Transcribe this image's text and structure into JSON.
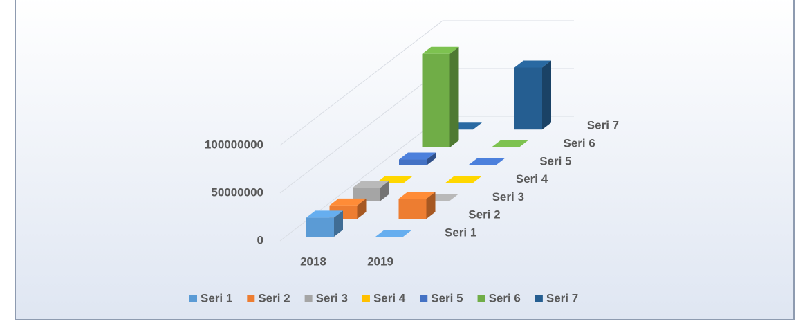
{
  "chart_data": {
    "type": "bar3d",
    "categories": [
      "2018",
      "2019"
    ],
    "series": [
      {
        "name": "Seri 1",
        "color": "#5b9bd5",
        "values": [
          20000000,
          0
        ]
      },
      {
        "name": "Seri 2",
        "color": "#ed7d31",
        "values": [
          14000000,
          21000000
        ]
      },
      {
        "name": "Seri 3",
        "color": "#a5a5a5",
        "values": [
          14000000,
          0
        ]
      },
      {
        "name": "Seri 4",
        "color": "#ffc000",
        "values": [
          0,
          0
        ]
      },
      {
        "name": "Seri 5",
        "color": "#4472c4",
        "values": [
          6000000,
          0
        ]
      },
      {
        "name": "Seri 6",
        "color": "#70ad47",
        "values": [
          98000000,
          0
        ]
      },
      {
        "name": "Seri 7",
        "color": "#255e91",
        "values": [
          0,
          65000000
        ]
      }
    ],
    "ylim": [
      0,
      150000000
    ],
    "yticks": [
      0,
      50000000,
      100000000
    ],
    "grid": true,
    "legend": "bottom"
  }
}
